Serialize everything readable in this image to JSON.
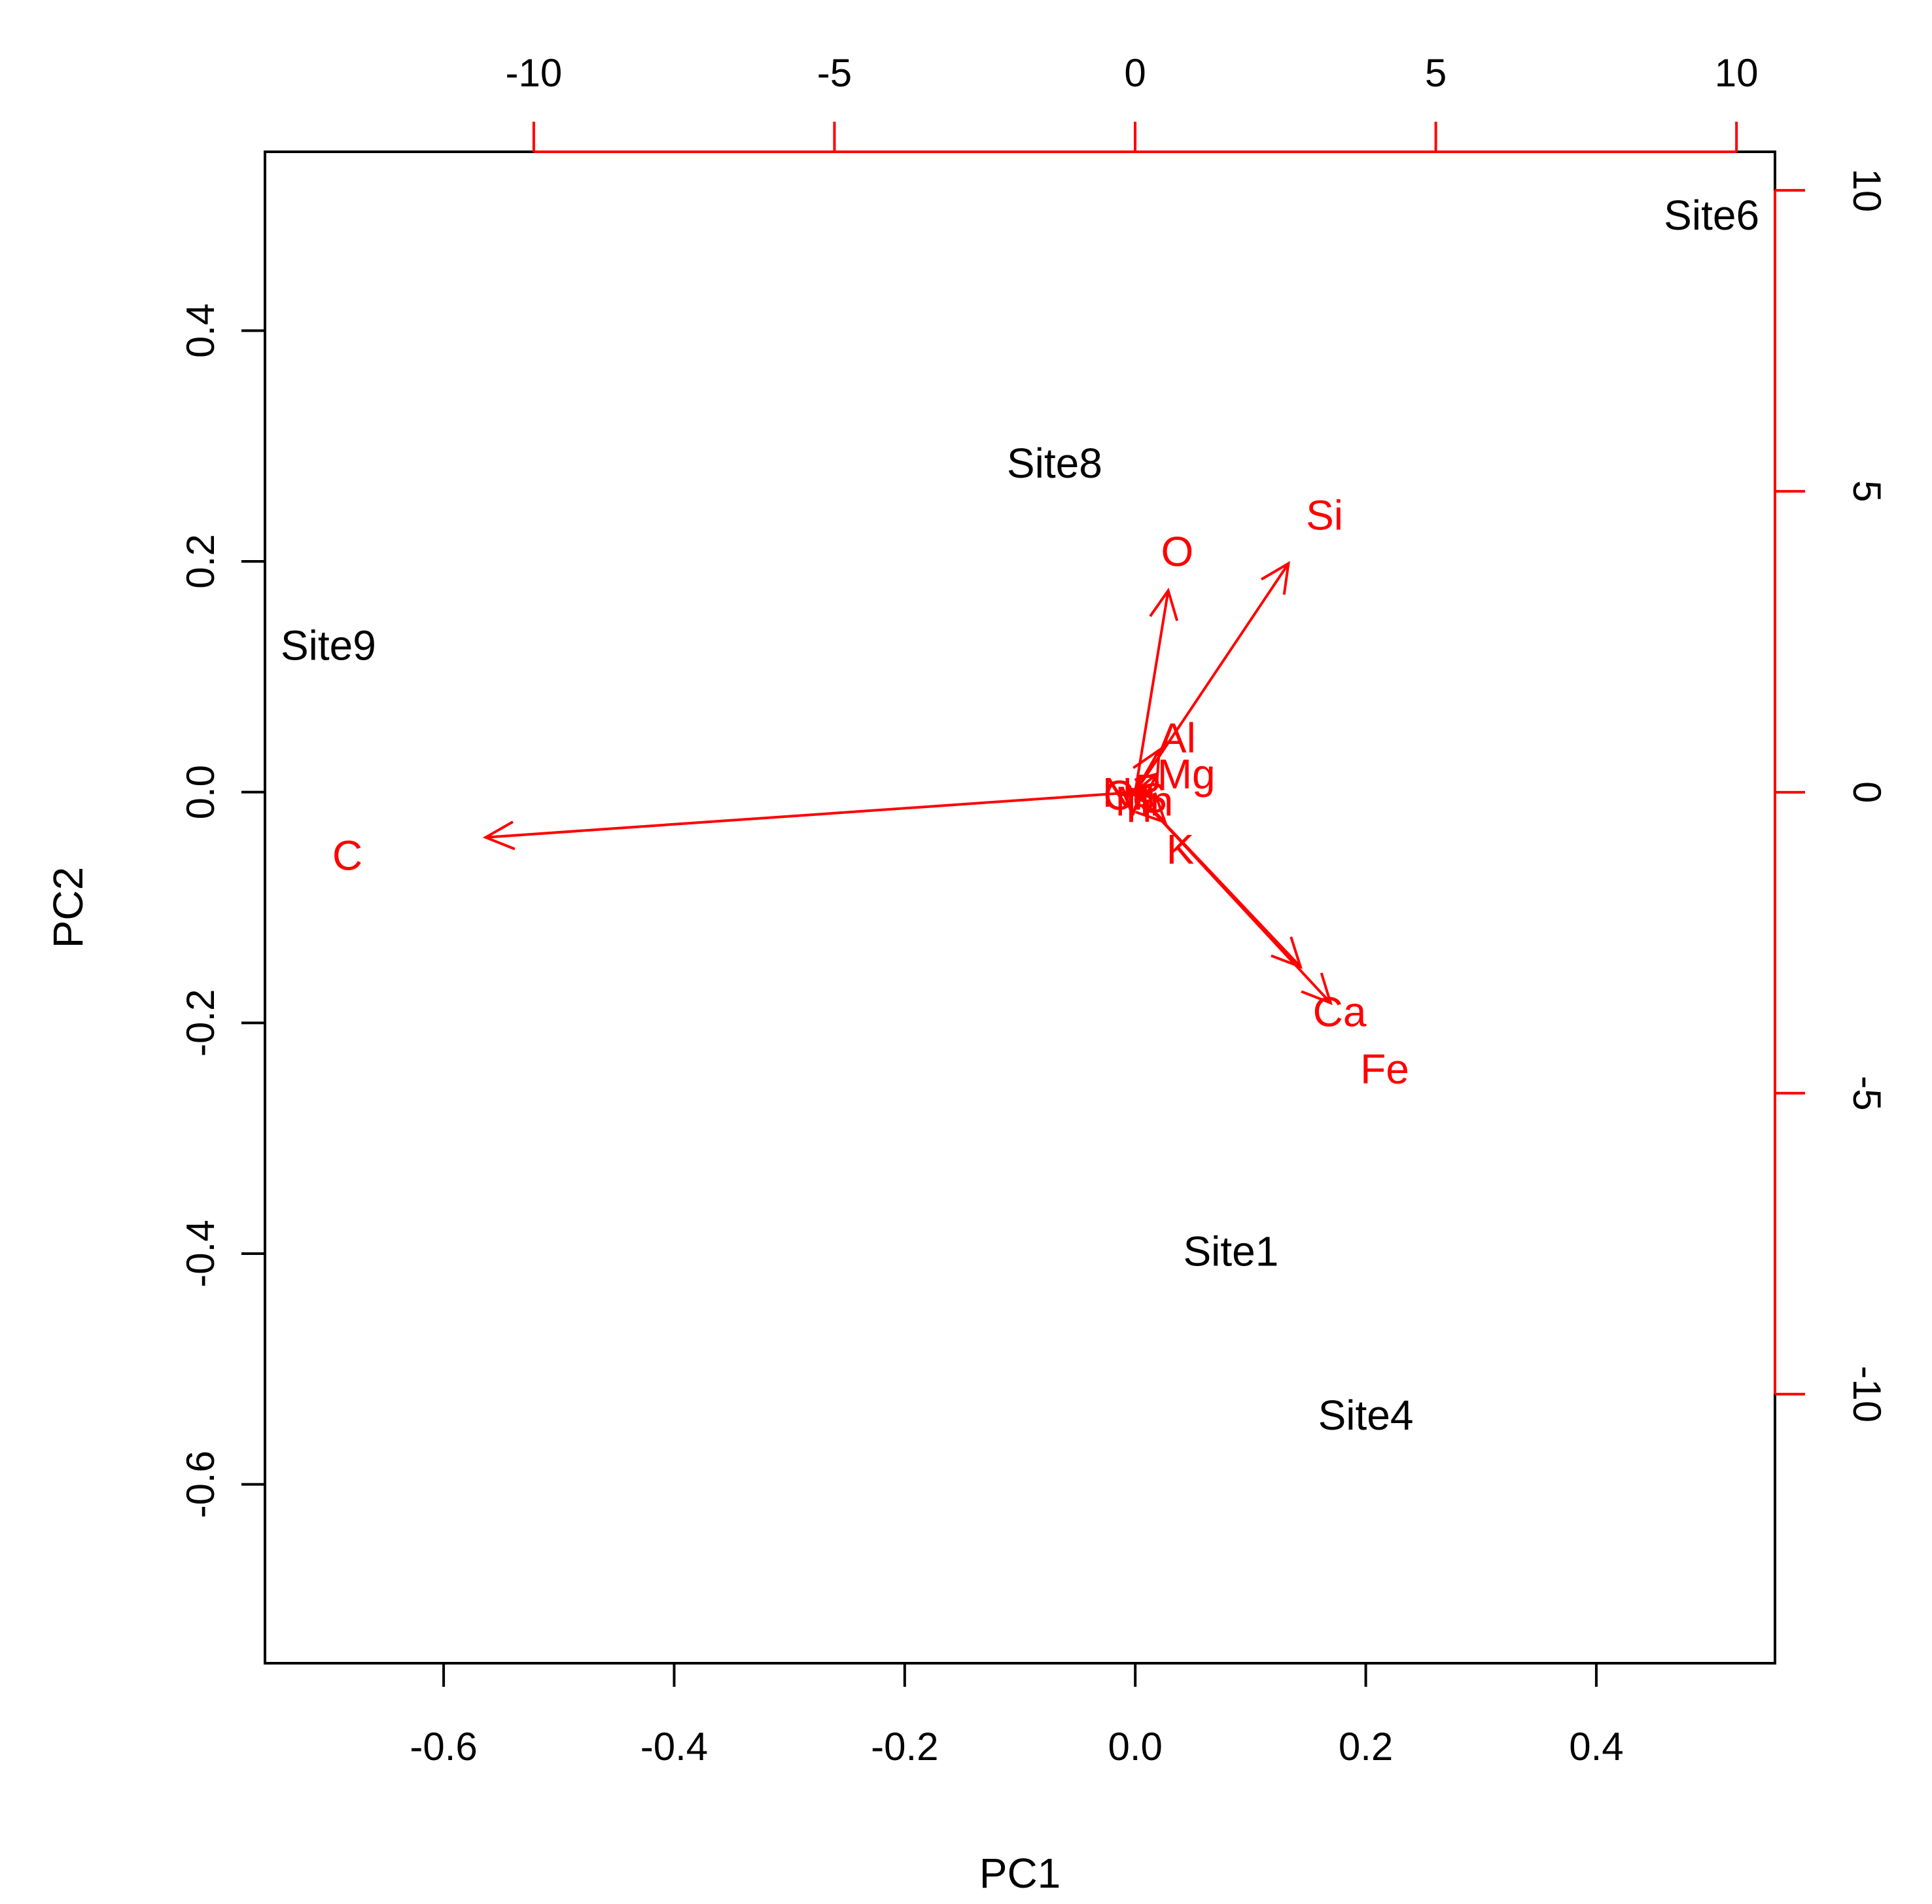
{
  "chart_data": {
    "type": "scatter",
    "subtype": "biplot",
    "xlabel": "PC1",
    "ylabel": "PC2",
    "xlim": [
      -0.755,
      0.555
    ],
    "ylim": [
      -0.755,
      0.555
    ],
    "x_ticks": [
      "-0.6",
      "-0.4",
      "-0.2",
      "0.0",
      "0.2",
      "0.4"
    ],
    "x_tick_values": [
      -0.6,
      -0.4,
      -0.2,
      0.0,
      0.2,
      0.4
    ],
    "y_ticks": [
      "-0.6",
      "-0.4",
      "-0.2",
      "0.0",
      "0.2",
      "0.4"
    ],
    "y_tick_values": [
      -0.6,
      -0.4,
      -0.2,
      0.0,
      0.2,
      0.4
    ],
    "top_ticks": [
      "-10",
      "-5",
      "0",
      "5",
      "10"
    ],
    "top_tick_values": [
      -10,
      -5,
      0,
      5,
      10
    ],
    "right_ticks": [
      "-10",
      "-5",
      "0",
      "5",
      "10"
    ],
    "right_tick_values": [
      -10,
      -5,
      0,
      5,
      10
    ],
    "secondary_lim": [
      -14.47,
      10.64
    ],
    "grid": false,
    "colors": {
      "points": "#000000",
      "variables": "#ff0000"
    },
    "points": [
      {
        "label": "Site6",
        "x": 0.5,
        "y": 0.5
      },
      {
        "label": "Site8",
        "x": -0.07,
        "y": 0.285
      },
      {
        "label": "Site9",
        "x": -0.7,
        "y": 0.127
      },
      {
        "label": "Site1",
        "x": 0.083,
        "y": -0.398
      },
      {
        "label": "Site4",
        "x": 0.2,
        "y": -0.54
      }
    ],
    "variables": [
      {
        "label": "C",
        "x": -10.8,
        "y": -0.75,
        "label_x": -13.1,
        "label_y": -1.05
      },
      {
        "label": "O",
        "x": 0.55,
        "y": 3.35,
        "label_x": 0.7,
        "label_y": 4.0
      },
      {
        "label": "Si",
        "x": 2.55,
        "y": 3.8,
        "label_x": 3.15,
        "label_y": 4.6
      },
      {
        "label": "Ca",
        "x": 3.25,
        "y": -3.5,
        "label_x": 3.4,
        "label_y": -3.65
      },
      {
        "label": "Fe",
        "x": 2.75,
        "y": -2.9,
        "label_x": 4.15,
        "label_y": -4.6
      },
      {
        "label": "Al",
        "x": 0.4,
        "y": 0.7,
        "label_x": 0.7,
        "label_y": 0.9
      },
      {
        "label": "Mg",
        "x": 0.35,
        "y": 0.3,
        "label_x": 0.85,
        "label_y": 0.3
      },
      {
        "label": "K",
        "x": 0.5,
        "y": -0.5,
        "label_x": 0.75,
        "label_y": -0.95
      },
      {
        "label": "Na",
        "x": -0.1,
        "y": 0.05,
        "label_x": -0.1,
        "label_y": 0.0
      },
      {
        "label": "Ti",
        "x": 0.15,
        "y": -0.15,
        "label_x": 0.0,
        "label_y": -0.25
      },
      {
        "label": "P",
        "x": 0.1,
        "y": 0.1,
        "label_x": 0.2,
        "label_y": 0.05
      },
      {
        "label": "S",
        "x": 0.05,
        "y": -0.05,
        "label_x": 0.3,
        "label_y": -0.1
      },
      {
        "label": "Cl",
        "x": -0.05,
        "y": 0.05,
        "label_x": -0.2,
        "label_y": -0.05
      },
      {
        "label": "Mn",
        "x": 0.1,
        "y": -0.1,
        "label_x": 0.15,
        "label_y": -0.15
      }
    ]
  }
}
